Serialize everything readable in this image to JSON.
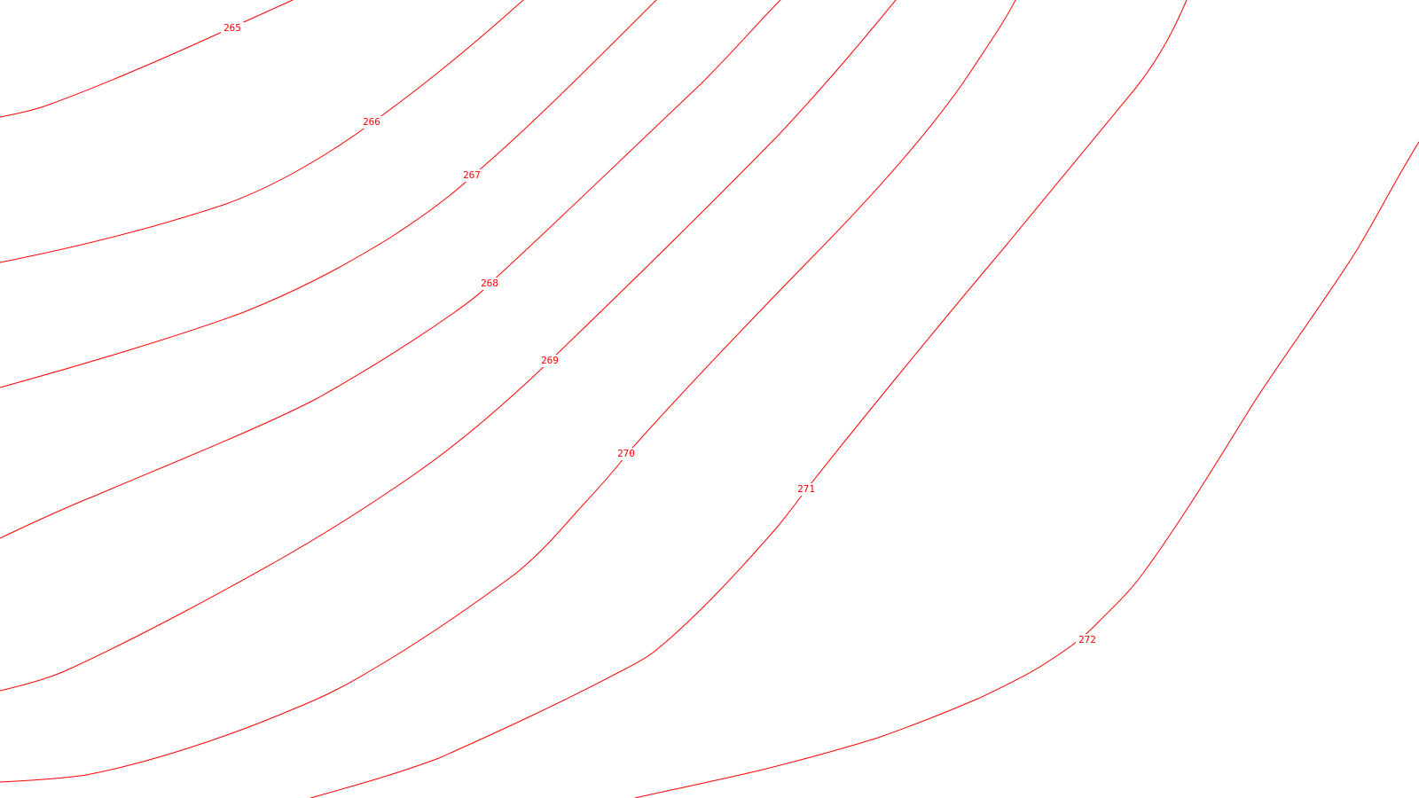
{
  "map": {
    "line_color": "#ff0000",
    "background_color": "#ffffff",
    "contour_labels": {
      "c265": "265",
      "c266": "266",
      "c267": "267",
      "c268": "268",
      "c269": "269",
      "c270": "270",
      "c271": "271",
      "c272": "272"
    }
  }
}
